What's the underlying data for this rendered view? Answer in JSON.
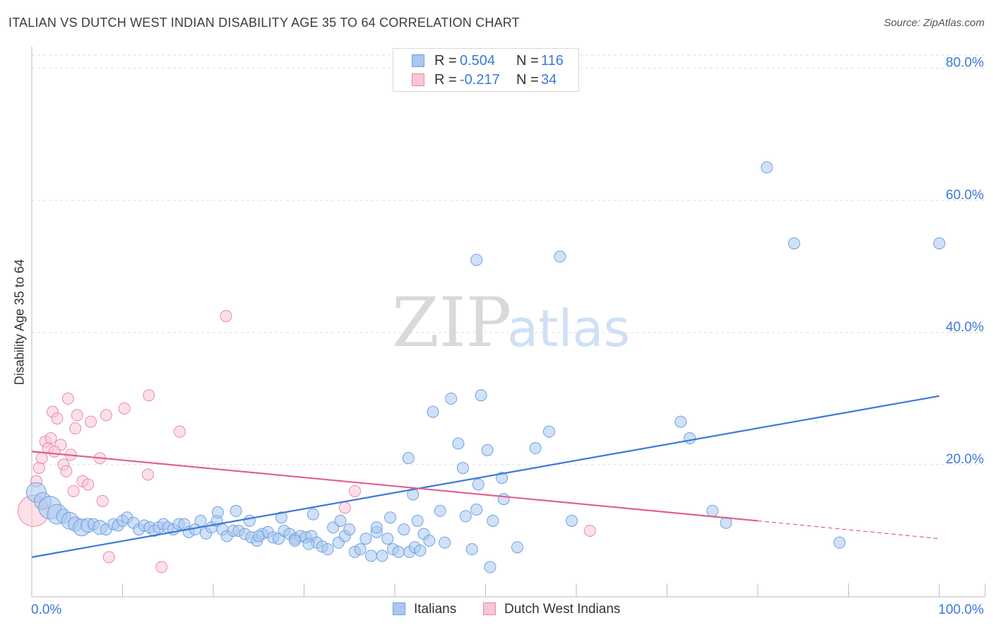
{
  "title": "ITALIAN VS DUTCH WEST INDIAN DISABILITY AGE 35 TO 64 CORRELATION CHART",
  "source": "Source: ZipAtlas.com",
  "watermark": {
    "zip": "ZIP",
    "atlas": "atlas"
  },
  "legend_top": {
    "r_label": "R =",
    "n_label": "N =",
    "rows": [
      {
        "r": "0.504",
        "n": "116",
        "color": "#a9c8f0",
        "border": "#6fa0e0"
      },
      {
        "r": "-0.217",
        "n": "34",
        "color": "#f8c6d4",
        "border": "#e98aa8"
      }
    ]
  },
  "legend_bottom": [
    {
      "label": "Italians",
      "color": "#a9c8f0",
      "border": "#6fa0e0"
    },
    {
      "label": "Dutch West Indians",
      "color": "#f8c6d4",
      "border": "#e98aa8"
    }
  ],
  "chart_data": {
    "type": "scatter",
    "title": "ITALIAN VS DUTCH WEST INDIAN DISABILITY AGE 35 TO 64 CORRELATION CHART",
    "xlabel": "",
    "ylabel": "Disability Age 35 to 64",
    "xlim": [
      0,
      100
    ],
    "ylim": [
      0,
      82
    ],
    "x_tick_labels": [
      "0.0%",
      "100.0%"
    ],
    "y_ticks": [
      20,
      40,
      60,
      80
    ],
    "y_tick_labels": [
      "20.0%",
      "40.0%",
      "60.0%",
      "80.0%"
    ],
    "grid": true,
    "legend_position": "top-center",
    "colors": {
      "italians": "#3b78d8",
      "italians_fill": "#a9c8f0",
      "dwi": "#e0608f",
      "dwi_fill": "#f8c6d4"
    },
    "series": [
      {
        "name": "Italians",
        "trend": {
          "x": [
            0,
            100
          ],
          "y": [
            6.0,
            30.4
          ]
        },
        "points": [
          [
            0.5,
            15.8,
            14
          ],
          [
            1.2,
            14.5,
            12
          ],
          [
            2,
            13.5,
            16
          ],
          [
            2.8,
            12.5,
            14
          ],
          [
            3.5,
            12.2,
            10
          ],
          [
            4.2,
            11.5,
            12
          ],
          [
            4.8,
            11.0,
            10
          ],
          [
            5.5,
            10.5,
            12
          ],
          [
            6.2,
            10.8,
            10
          ],
          [
            6.8,
            11.0,
            8
          ],
          [
            7.5,
            10.5,
            10
          ],
          [
            8.2,
            10.2,
            8
          ],
          [
            9,
            11.0,
            8
          ],
          [
            9.5,
            10.8,
            8
          ],
          [
            10,
            11.5,
            8
          ],
          [
            10.5,
            12.0,
            8
          ],
          [
            11.2,
            11.2,
            8
          ],
          [
            11.8,
            10.2,
            8
          ],
          [
            12.4,
            10.8,
            8
          ],
          [
            13,
            10.5,
            8
          ],
          [
            13.5,
            10.0,
            8
          ],
          [
            14,
            10.5,
            8
          ],
          [
            14.5,
            11.0,
            8
          ],
          [
            15,
            10.5,
            8
          ],
          [
            15.6,
            10.2,
            8
          ],
          [
            16.2,
            11.0,
            8
          ],
          [
            16.8,
            11.0,
            8
          ],
          [
            17.3,
            9.8,
            8
          ],
          [
            18,
            10.2,
            8
          ],
          [
            18.6,
            11.5,
            8
          ],
          [
            19.2,
            9.6,
            8
          ],
          [
            19.8,
            10.5,
            8
          ],
          [
            20.4,
            11.5,
            8
          ],
          [
            21,
            10.2,
            8
          ],
          [
            21.5,
            9.2,
            8
          ],
          [
            22.2,
            10.0,
            8
          ],
          [
            22.8,
            10.0,
            8
          ],
          [
            23.5,
            9.5,
            8
          ],
          [
            24.2,
            9.0,
            8
          ],
          [
            24.8,
            8.5,
            8
          ],
          [
            25.4,
            9.5,
            8
          ],
          [
            26,
            9.8,
            8
          ],
          [
            26.6,
            9.0,
            8
          ],
          [
            27.2,
            8.8,
            8
          ],
          [
            27.8,
            10.0,
            8
          ],
          [
            28.4,
            9.5,
            8
          ],
          [
            29,
            8.8,
            8
          ],
          [
            29.6,
            9.2,
            8
          ],
          [
            30.2,
            9.0,
            8
          ],
          [
            30.8,
            9.2,
            8
          ],
          [
            31.4,
            8.2,
            8
          ],
          [
            32,
            7.6,
            8
          ],
          [
            32.6,
            7.2,
            8
          ],
          [
            33.2,
            10.5,
            8
          ],
          [
            33.8,
            8.2,
            8
          ],
          [
            34.5,
            9.2,
            8
          ],
          [
            35,
            10.2,
            8
          ],
          [
            35.6,
            6.8,
            8
          ],
          [
            36.2,
            7.2,
            8
          ],
          [
            36.8,
            8.8,
            8
          ],
          [
            37.4,
            6.2,
            8
          ],
          [
            38,
            9.8,
            8
          ],
          [
            38.6,
            6.2,
            8
          ],
          [
            39.2,
            8.8,
            8
          ],
          [
            39.8,
            7.2,
            8
          ],
          [
            40.4,
            6.8,
            8
          ],
          [
            41,
            10.2,
            8
          ],
          [
            41.6,
            6.8,
            8
          ],
          [
            42.2,
            7.5,
            8
          ],
          [
            42.8,
            7.0,
            8
          ],
          [
            20.5,
            12.8,
            8
          ],
          [
            22.5,
            13.0,
            8
          ],
          [
            24,
            11.5,
            8
          ],
          [
            27.5,
            12.0,
            8
          ],
          [
            31,
            12.5,
            8
          ],
          [
            34,
            11.5,
            8
          ],
          [
            38,
            10.5,
            8
          ],
          [
            39.5,
            12.0,
            8
          ],
          [
            25,
            9.2,
            8
          ],
          [
            29,
            8.5,
            8
          ],
          [
            41.5,
            21.0,
            8
          ],
          [
            42,
            15.5,
            8
          ],
          [
            42.5,
            11.5,
            8
          ],
          [
            43.2,
            9.5,
            8
          ],
          [
            43.8,
            8.5,
            8
          ],
          [
            44.2,
            28.0,
            8
          ],
          [
            45,
            13.0,
            8
          ],
          [
            45.5,
            8.2,
            8
          ],
          [
            46.2,
            30.0,
            8
          ],
          [
            47,
            23.2,
            8
          ],
          [
            47.5,
            19.5,
            8
          ],
          [
            47.8,
            12.2,
            8
          ],
          [
            48.5,
            7.2,
            8
          ],
          [
            49,
            13.2,
            8
          ],
          [
            49.2,
            17.0,
            8
          ],
          [
            49,
            51.0,
            8
          ],
          [
            49.5,
            30.5,
            8
          ],
          [
            50.2,
            22.2,
            8
          ],
          [
            50.8,
            11.5,
            8
          ],
          [
            50.5,
            4.5,
            8
          ],
          [
            51.8,
            18.0,
            8
          ],
          [
            52,
            14.8,
            8
          ],
          [
            53.5,
            7.5,
            8
          ],
          [
            55.5,
            22.5,
            8
          ],
          [
            57,
            25.0,
            8
          ],
          [
            58.2,
            51.5,
            8
          ],
          [
            59.5,
            11.5,
            8
          ],
          [
            71.5,
            26.5,
            8
          ],
          [
            72.5,
            24.0,
            8
          ],
          [
            75,
            13.0,
            8
          ],
          [
            76.5,
            11.2,
            8
          ],
          [
            81,
            65.0,
            8
          ],
          [
            84,
            53.5,
            8
          ],
          [
            89,
            8.2,
            8
          ],
          [
            100,
            53.5,
            8
          ],
          [
            30.5,
            8.0,
            8
          ]
        ]
      },
      {
        "name": "Dutch West Indians",
        "trend": {
          "x": [
            0,
            80
          ],
          "y": [
            22.0,
            11.5
          ]
        },
        "trend_dashed": {
          "x": [
            80,
            100
          ],
          "y": [
            11.5,
            8.8
          ]
        },
        "points": [
          [
            0.2,
            13.0,
            22
          ],
          [
            0.5,
            17.5,
            8
          ],
          [
            0.8,
            19.5,
            8
          ],
          [
            1.1,
            21.0,
            8
          ],
          [
            1.5,
            23.5,
            8
          ],
          [
            1.8,
            22.5,
            8
          ],
          [
            2.1,
            24.0,
            8
          ],
          [
            2.3,
            28.0,
            8
          ],
          [
            2.8,
            27.0,
            8
          ],
          [
            3.2,
            23.0,
            8
          ],
          [
            3.5,
            20.0,
            8
          ],
          [
            3.8,
            19.0,
            8
          ],
          [
            4.0,
            30.0,
            8
          ],
          [
            4.3,
            21.5,
            8
          ],
          [
            4.6,
            16.0,
            8
          ],
          [
            4.8,
            25.5,
            8
          ],
          [
            5.0,
            27.5,
            8
          ],
          [
            5.6,
            17.5,
            8
          ],
          [
            6.2,
            17.0,
            8
          ],
          [
            6.5,
            26.5,
            8
          ],
          [
            7.5,
            21.0,
            8
          ],
          [
            7.8,
            14.5,
            8
          ],
          [
            8.2,
            27.5,
            8
          ],
          [
            8.5,
            6.0,
            8
          ],
          [
            10.2,
            28.5,
            8
          ],
          [
            12.8,
            18.5,
            8
          ],
          [
            12.9,
            30.5,
            8
          ],
          [
            14.3,
            4.5,
            8
          ],
          [
            16.3,
            25.0,
            8
          ],
          [
            21.4,
            42.5,
            8
          ],
          [
            34.5,
            13.5,
            8
          ],
          [
            35.6,
            16.0,
            8
          ],
          [
            61.5,
            10.0,
            8
          ],
          [
            2.5,
            22.0,
            8
          ]
        ]
      }
    ]
  }
}
